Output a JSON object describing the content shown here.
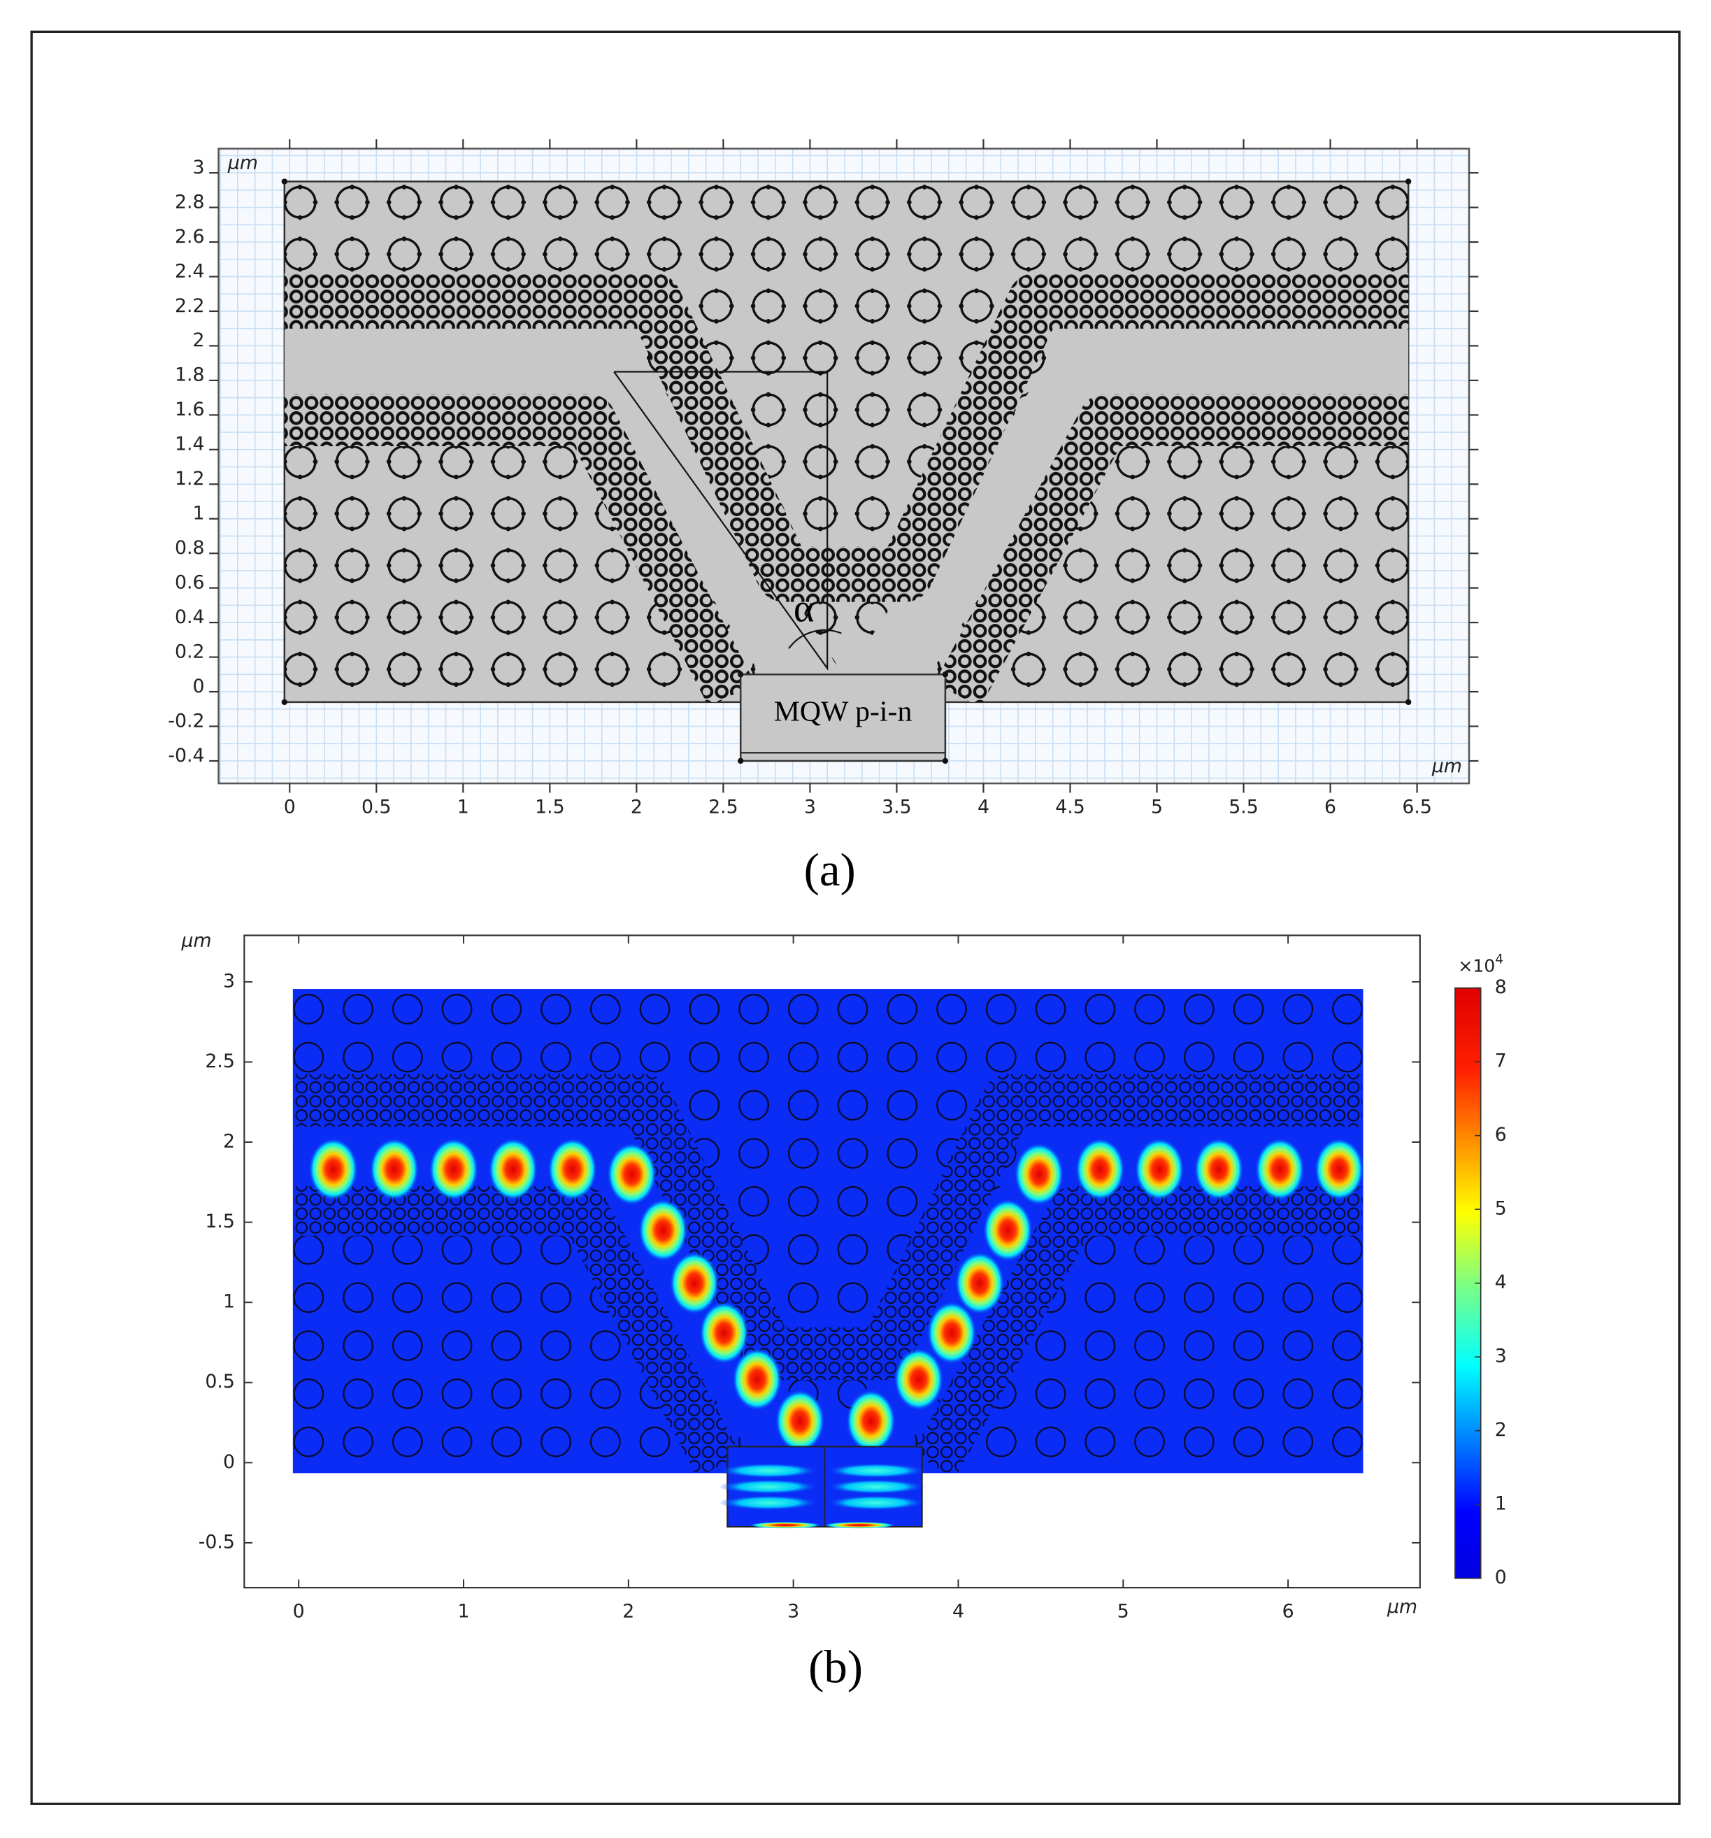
{
  "panel_a": {
    "caption": "(a)",
    "x_unit": "μm",
    "y_unit": "μm",
    "xlim": [
      -0.41,
      6.8
    ],
    "ylim": [
      -0.53,
      3.14
    ],
    "xticks": [
      0,
      0.5,
      1,
      1.5,
      2,
      2.5,
      3,
      3.5,
      4,
      4.5,
      5,
      5.5,
      6,
      6.5
    ],
    "yticks": [
      -0.4,
      -0.2,
      0,
      0.2,
      0.4,
      0.6,
      0.8,
      1,
      1.2,
      1.4,
      1.6,
      1.8,
      2,
      2.2,
      2.4,
      2.6,
      2.8,
      3
    ],
    "annotations": {
      "angle": "α",
      "device": "MQW p-i-n"
    }
  },
  "panel_b": {
    "caption": "(b)",
    "x_unit": "μm",
    "y_unit": "μm",
    "xlim": [
      -0.33,
      6.8
    ],
    "ylim": [
      -0.78,
      3.29
    ],
    "xticks": [
      0,
      1,
      2,
      3,
      4,
      5,
      6
    ],
    "yticks": [
      -0.5,
      0,
      0.5,
      1,
      1.5,
      2,
      2.5,
      3
    ],
    "colorbar": {
      "lim": [
        0,
        8
      ],
      "ticks": [
        0,
        1,
        2,
        3,
        4,
        5,
        6,
        7,
        8
      ],
      "multiplier": "×10",
      "exponent": "4"
    }
  }
}
